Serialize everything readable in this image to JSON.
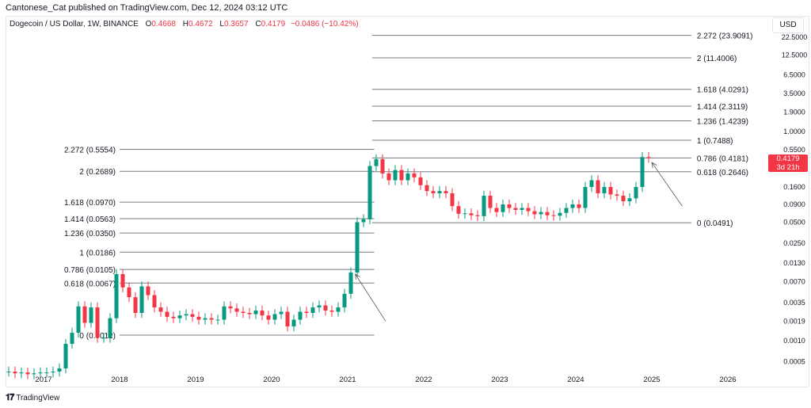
{
  "publisher_line": "Cantonese_Cat published on TradingView.com, Dec 12, 2024 03:12 UTC",
  "legend": {
    "symbol": "Dogecoin / US Dollar, 1W, BINANCE",
    "open_label": "O",
    "open": "0.4668",
    "high_label": "H",
    "high": "0.4672",
    "low_label": "L",
    "low": "0.3657",
    "close_label": "C",
    "close": "0.4179",
    "change": "−0.0486 (−10.42%)"
  },
  "currency_button": "USD",
  "price_tag": {
    "price": "0.4179",
    "countdown": "3d 21h",
    "color": "#f23645"
  },
  "brand": {
    "logo": "TV",
    "name": "TradingView"
  },
  "colors": {
    "up": "#089981",
    "down": "#f23645",
    "fib_line": "#787b86",
    "arrow": "#555555"
  },
  "chart_data": {
    "type": "candlestick",
    "scale": "log",
    "interval": "1W",
    "note_resolution": "approximate monthly closes read from chart",
    "x_ticks": [
      "2017",
      "2018",
      "2019",
      "2020",
      "2021",
      "2022",
      "2023",
      "2024",
      "2025",
      "2026"
    ],
    "y_ticks": [
      "22.5000",
      "12.5000",
      "6.5000",
      "3.5000",
      "1.9000",
      "1.0000",
      "0.5500",
      "0.1600",
      "0.0900",
      "0.0500",
      "0.0250",
      "0.0130",
      "0.0070",
      "0.0035",
      "0.0019",
      "0.0010",
      "0.0005"
    ],
    "ylim": [
      0.0004,
      30
    ],
    "series": [
      {
        "year": 2016,
        "start_month": 7,
        "closes": [
          0.00036,
          0.00034,
          0.00035,
          0.00033,
          0.00034,
          0.00035
        ]
      },
      {
        "year": 2017,
        "start_month": 1,
        "closes": [
          0.00035,
          0.00036,
          0.0004,
          0.0009,
          0.0013,
          0.0031,
          0.0018,
          0.003,
          0.0011,
          0.0011,
          0.0021,
          0.009
        ]
      },
      {
        "year": 2018,
        "start_month": 1,
        "closes": [
          0.0058,
          0.0042,
          0.0025,
          0.006,
          0.0045,
          0.003,
          0.0026,
          0.0022,
          0.0021,
          0.0023,
          0.0024,
          0.0022
        ]
      },
      {
        "year": 2019,
        "start_month": 1,
        "closes": [
          0.002,
          0.0021,
          0.002,
          0.002,
          0.0031,
          0.0029,
          0.0026,
          0.0025,
          0.0024,
          0.0027,
          0.0023,
          0.002
        ]
      },
      {
        "year": 2020,
        "start_month": 1,
        "closes": [
          0.0024,
          0.0026,
          0.0016,
          0.002,
          0.0026,
          0.0025,
          0.003,
          0.0032,
          0.0027,
          0.0026,
          0.003,
          0.0047
        ]
      },
      {
        "year": 2021,
        "start_month": 1,
        "closes": [
          0.0095,
          0.05,
          0.055,
          0.32,
          0.4,
          0.25,
          0.2,
          0.28,
          0.2,
          0.25,
          0.22,
          0.17
        ]
      },
      {
        "year": 2022,
        "start_month": 1,
        "closes": [
          0.14,
          0.13,
          0.14,
          0.13,
          0.085,
          0.066,
          0.067,
          0.063,
          0.061,
          0.12,
          0.08,
          0.07
        ]
      },
      {
        "year": 2023,
        "start_month": 1,
        "closes": [
          0.09,
          0.08,
          0.075,
          0.08,
          0.072,
          0.065,
          0.07,
          0.063,
          0.062,
          0.068,
          0.08,
          0.09
        ]
      },
      {
        "year": 2024,
        "start_month": 1,
        "closes": [
          0.08,
          0.16,
          0.2,
          0.13,
          0.16,
          0.125,
          0.12,
          0.1,
          0.11,
          0.16,
          0.43,
          0.4179
        ]
      }
    ],
    "fib_sets": [
      {
        "from": 2018.0,
        "to": 2021.35,
        "label_side": "left",
        "levels": [
          {
            "value": 0.5554,
            "label": "2.272 (0.5554)"
          },
          {
            "value": 0.2689,
            "label": "2 (0.2689)"
          },
          {
            "value": 0.097,
            "label": "1.618 (0.0970)"
          },
          {
            "value": 0.0563,
            "label": "1.414 (0.0563)"
          },
          {
            "value": 0.035,
            "label": "1.236 (0.0350)"
          },
          {
            "value": 0.0186,
            "label": "1 (0.0186)"
          },
          {
            "value": 0.0105,
            "label": "0.786 (0.0105)"
          },
          {
            "value": 0.0067,
            "label": "0.618 (0.0067)"
          },
          {
            "value": 0.0012,
            "label": "0 (0.0012)"
          }
        ]
      },
      {
        "from": 2021.32,
        "to": 2025.52,
        "label_side": "right",
        "levels": [
          {
            "value": 23.9091,
            "label": "2.272 (23.9091)"
          },
          {
            "value": 11.4006,
            "label": "2 (11.4006)"
          },
          {
            "value": 4.0291,
            "label": "1.618 (4.0291)"
          },
          {
            "value": 2.3119,
            "label": "1.414 (2.3119)"
          },
          {
            "value": 1.4239,
            "label": "1.236 (1.4239)"
          },
          {
            "value": 0.7488,
            "label": "1 (0.7488)"
          },
          {
            "value": 0.4181,
            "label": "0.786 (0.4181)"
          },
          {
            "value": 0.2646,
            "label": "0.618 (0.2646)"
          },
          {
            "value": 0.0491,
            "label": "0 (0.0491)"
          }
        ]
      }
    ],
    "arrows": [
      {
        "from": [
          2021.5,
          0.0019
        ],
        "to": [
          2021.1,
          0.009
        ]
      },
      {
        "from": [
          2025.4,
          0.085
        ],
        "to": [
          2025.0,
          0.36
        ]
      }
    ]
  }
}
